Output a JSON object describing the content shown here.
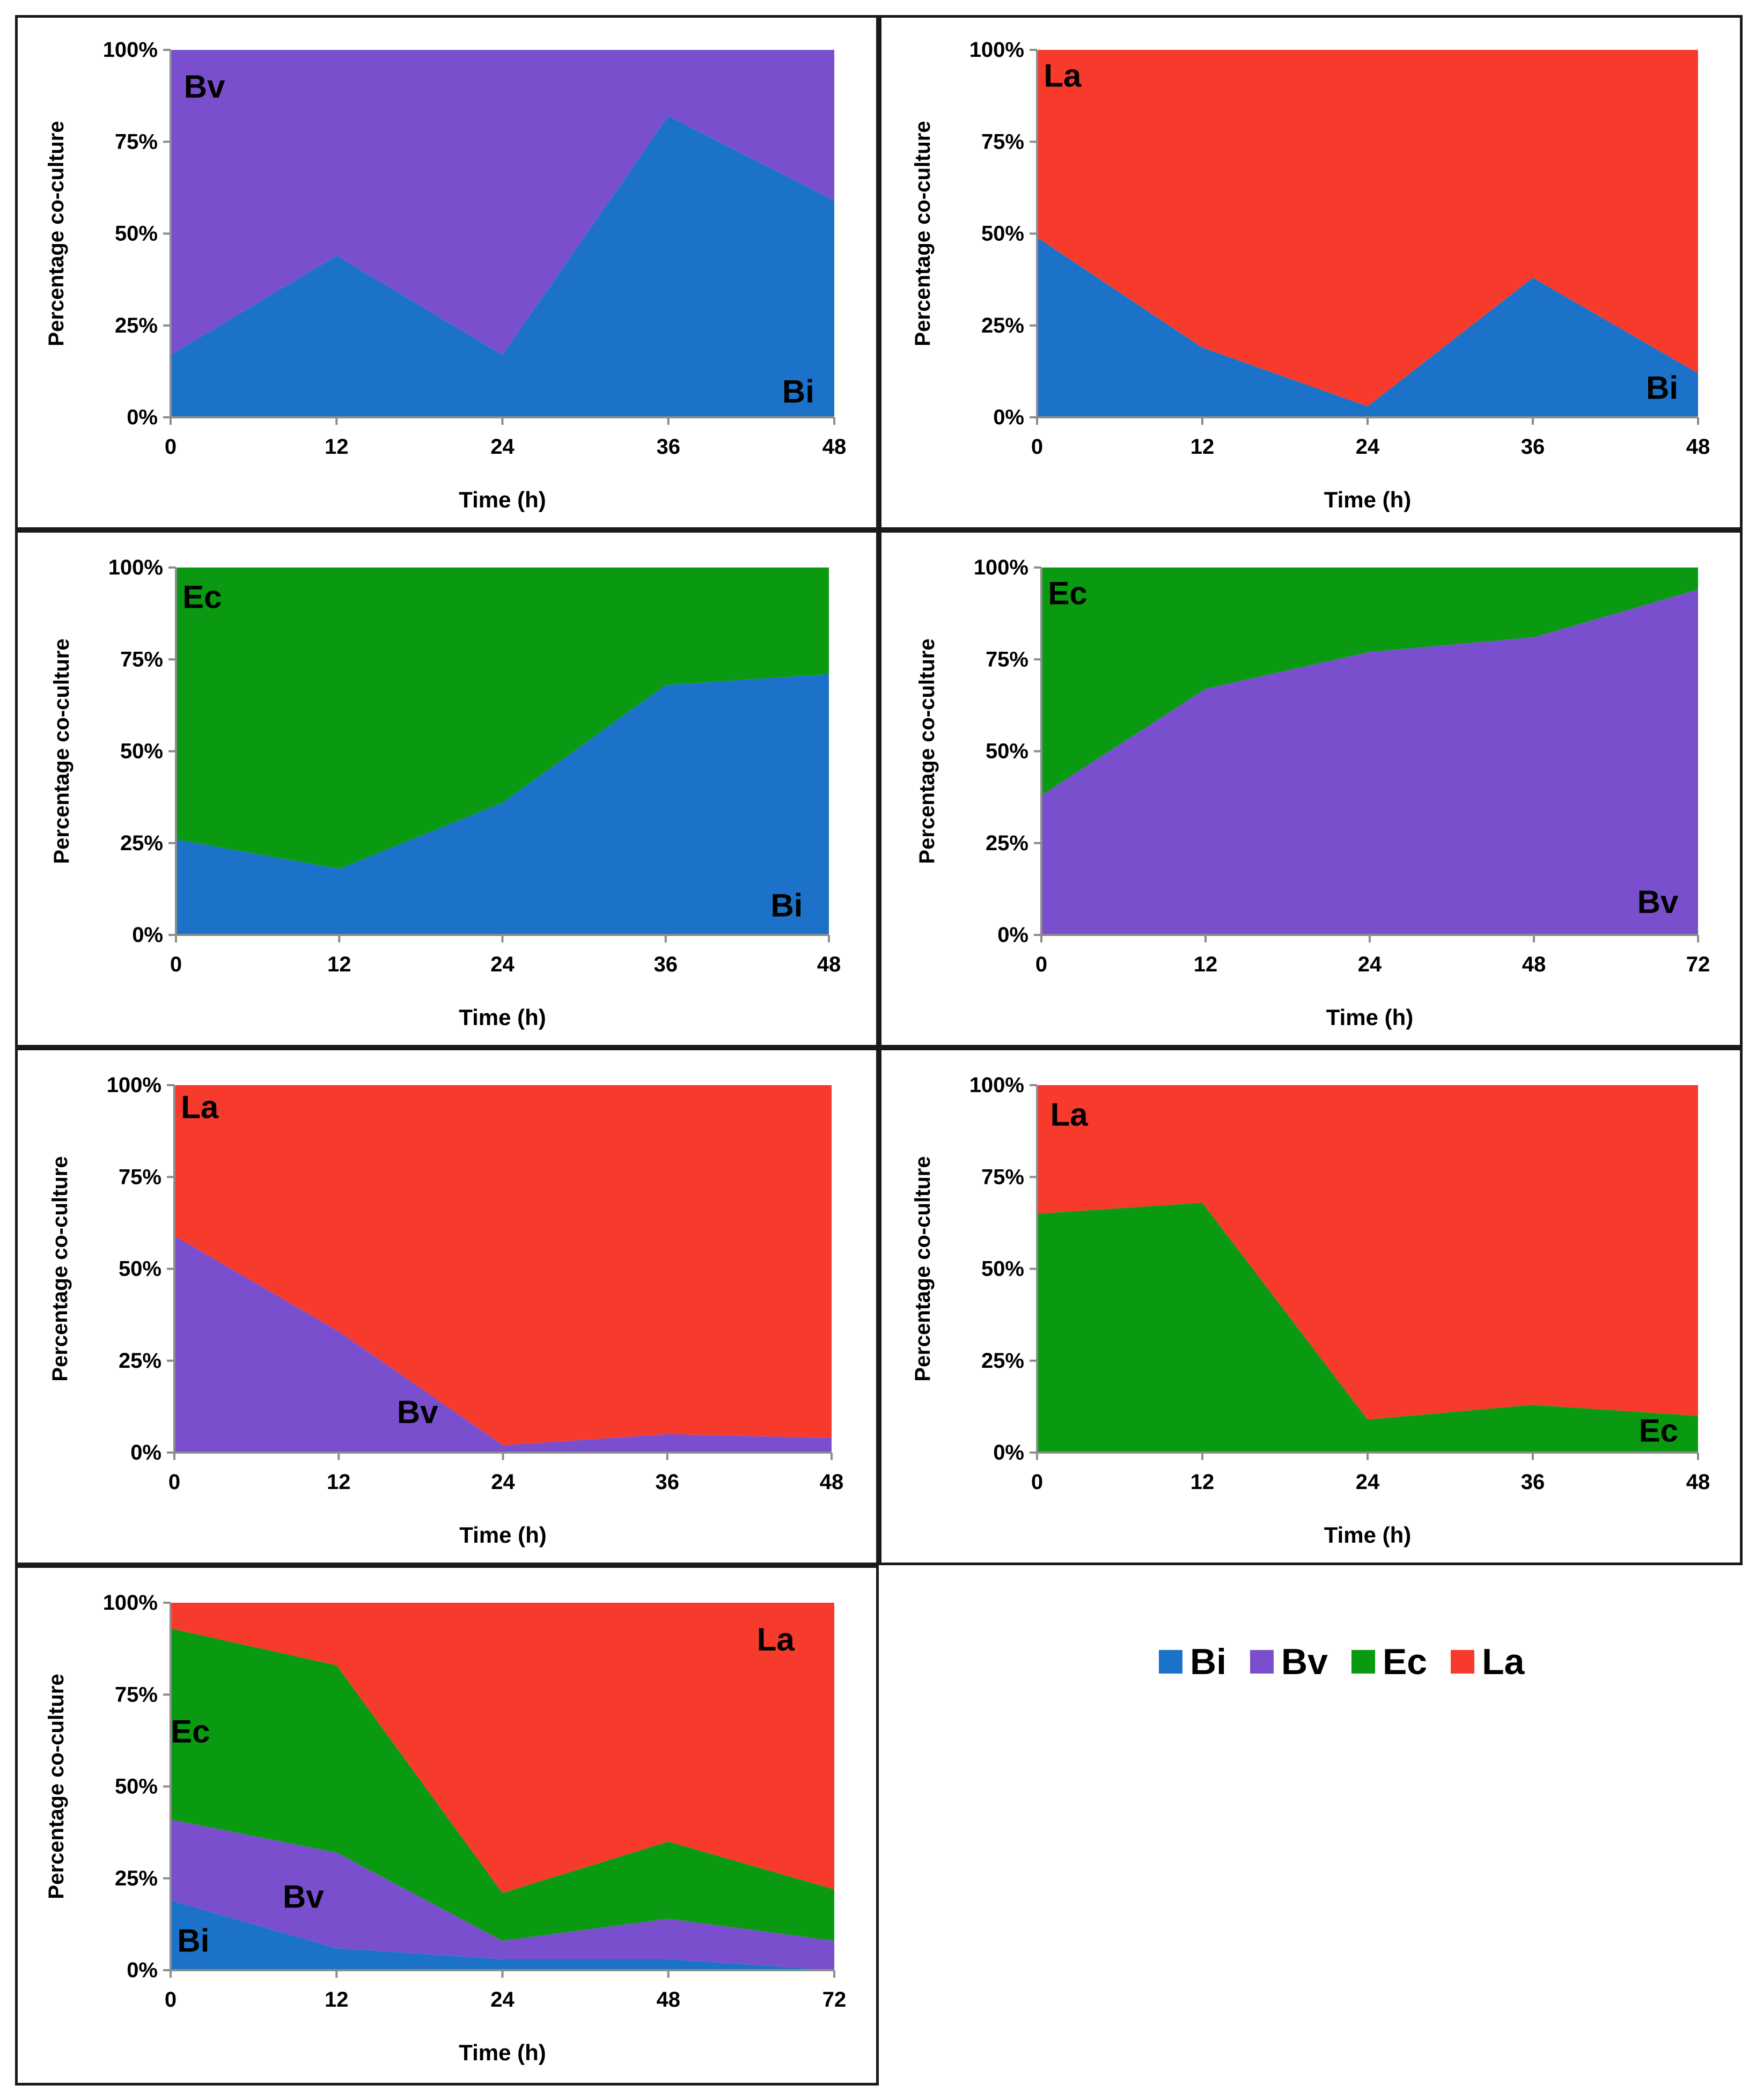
{
  "colors": {
    "Bi": "#1c72c9",
    "Bv": "#7a4fce",
    "Ec": "#0a9a12",
    "La": "#f63a2b"
  },
  "legend": [
    {
      "key": "Bi",
      "label": "Bi"
    },
    {
      "key": "Bv",
      "label": "Bv"
    },
    {
      "key": "Ec",
      "label": "Ec"
    },
    {
      "key": "La",
      "label": "La"
    }
  ],
  "chart_data": [
    {
      "type": "area",
      "stacked": "percent",
      "categories": [
        "0",
        "12",
        "24",
        "36",
        "48"
      ],
      "series": [
        {
          "name": "Bi",
          "values": [
            17,
            44,
            17,
            82,
            59
          ]
        },
        {
          "name": "Bv",
          "values": [
            83,
            56,
            83,
            18,
            41
          ]
        }
      ],
      "labels": [
        "Bv",
        "Bi"
      ],
      "xlabel": "Time (h)",
      "ylabel": "Percentage co-culture",
      "yticks": [
        "0%",
        "25%",
        "50%",
        "75%",
        "100%"
      ],
      "ylim": [
        0,
        100
      ]
    },
    {
      "type": "area",
      "stacked": "percent",
      "categories": [
        "0",
        "12",
        "24",
        "36",
        "48"
      ],
      "series": [
        {
          "name": "Bi",
          "values": [
            49,
            19,
            3,
            38,
            12
          ]
        },
        {
          "name": "La",
          "values": [
            51,
            81,
            97,
            62,
            88
          ]
        }
      ],
      "labels": [
        "La",
        "Bi"
      ],
      "xlabel": "Time (h)",
      "ylabel": "Percentage co-culture",
      "yticks": [
        "0%",
        "25%",
        "50%",
        "75%",
        "100%"
      ],
      "ylim": [
        0,
        100
      ]
    },
    {
      "type": "area",
      "stacked": "percent",
      "categories": [
        "0",
        "12",
        "24",
        "36",
        "48"
      ],
      "series": [
        {
          "name": "Bi",
          "values": [
            26,
            18,
            36,
            68,
            71
          ]
        },
        {
          "name": "Ec",
          "values": [
            74,
            82,
            64,
            32,
            29
          ]
        }
      ],
      "labels": [
        "Ec",
        "Bi"
      ],
      "xlabel": "Time (h)",
      "ylabel": "Percentage co-culture",
      "yticks": [
        "0%",
        "25%",
        "50%",
        "75%",
        "100%"
      ],
      "ylim": [
        0,
        100
      ]
    },
    {
      "type": "area",
      "stacked": "percent",
      "categories": [
        "0",
        "12",
        "24",
        "48",
        "72"
      ],
      "series": [
        {
          "name": "Bv",
          "values": [
            38,
            67,
            77,
            81,
            94
          ]
        },
        {
          "name": "Ec",
          "values": [
            62,
            33,
            23,
            19,
            6
          ]
        }
      ],
      "labels": [
        "Ec",
        "Bv"
      ],
      "xlabel": "Time (h)",
      "ylabel": "Percentage co-culture",
      "yticks": [
        "0%",
        "25%",
        "50%",
        "75%",
        "100%"
      ],
      "ylim": [
        0,
        100
      ]
    },
    {
      "type": "area",
      "stacked": "percent",
      "categories": [
        "0",
        "12",
        "24",
        "36",
        "48"
      ],
      "series": [
        {
          "name": "Bv",
          "values": [
            59,
            33,
            2,
            5,
            4
          ]
        },
        {
          "name": "La",
          "values": [
            41,
            67,
            98,
            95,
            96
          ]
        }
      ],
      "labels": [
        "La",
        "Bv"
      ],
      "xlabel": "Time (h)",
      "ylabel": "Percentage co-culture",
      "yticks": [
        "0%",
        "25%",
        "50%",
        "75%",
        "100%"
      ],
      "ylim": [
        0,
        100
      ]
    },
    {
      "type": "area",
      "stacked": "percent",
      "categories": [
        "0",
        "12",
        "24",
        "36",
        "48"
      ],
      "series": [
        {
          "name": "Ec",
          "values": [
            65,
            68,
            9,
            13,
            10
          ]
        },
        {
          "name": "La",
          "values": [
            35,
            32,
            91,
            87,
            90
          ]
        }
      ],
      "labels": [
        "La",
        "Ec"
      ],
      "xlabel": "Time (h)",
      "ylabel": "Percentage co-culture",
      "yticks": [
        "0%",
        "25%",
        "50%",
        "75%",
        "100%"
      ],
      "ylim": [
        0,
        100
      ]
    },
    {
      "type": "area",
      "stacked": "percent",
      "categories": [
        "0",
        "12",
        "24",
        "48",
        "72"
      ],
      "series": [
        {
          "name": "Bi",
          "values": [
            19,
            6,
            3,
            3,
            0
          ]
        },
        {
          "name": "Bv",
          "values": [
            22,
            26,
            5,
            11,
            8
          ]
        },
        {
          "name": "Ec",
          "values": [
            52,
            51,
            13,
            21,
            14
          ]
        },
        {
          "name": "La",
          "values": [
            7,
            17,
            79,
            65,
            78
          ]
        }
      ],
      "labels": [
        "La",
        "Ec",
        "Bv",
        "Bi"
      ],
      "xlabel": "Time (h)",
      "ylabel": "Percentage co-culture",
      "yticks": [
        "0%",
        "25%",
        "50%",
        "75%",
        "100%"
      ],
      "ylim": [
        0,
        100
      ]
    }
  ]
}
